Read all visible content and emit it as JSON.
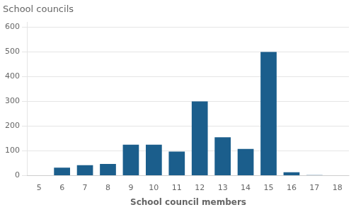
{
  "chart_data": {
    "type": "bar",
    "title": "School councils",
    "xlabel": "School council members",
    "categories": [
      5,
      6,
      7,
      8,
      9,
      10,
      11,
      12,
      13,
      14,
      15,
      16,
      17,
      18
    ],
    "values": [
      0,
      32,
      42,
      47,
      125,
      125,
      97,
      300,
      155,
      108,
      500,
      13,
      2,
      1
    ],
    "color": "#1b5e8c",
    "ylim": [
      0,
      620
    ],
    "yticks": [
      0,
      100,
      200,
      300,
      400,
      500,
      600
    ],
    "grid": true
  }
}
